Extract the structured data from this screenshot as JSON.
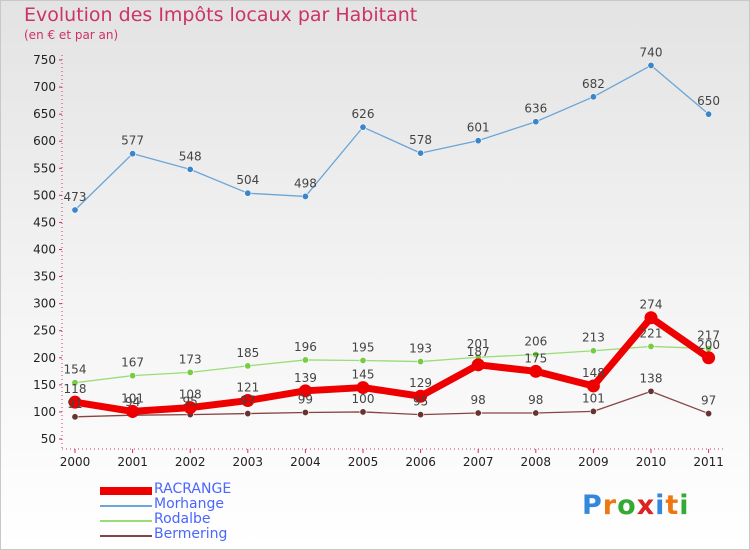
{
  "chart_data": {
    "type": "line",
    "title": "Evolution des Impôts locaux par Habitant",
    "subtitle": "(en € et par an)",
    "categories": [
      "2000",
      "2001",
      "2002",
      "2003",
      "2004",
      "2005",
      "2006",
      "2007",
      "2008",
      "2009",
      "2010",
      "2011"
    ],
    "ylim": [
      50,
      750
    ],
    "yticks": [
      50,
      100,
      150,
      200,
      250,
      300,
      350,
      400,
      450,
      500,
      550,
      600,
      650,
      700,
      750
    ],
    "grid": false,
    "legend_position": "bottom-left",
    "series": [
      {
        "name": "Morhange",
        "color": "#6aa6d8",
        "marker_color": "#3a86c8",
        "values": [
          473,
          577,
          548,
          504,
          498,
          626,
          578,
          601,
          636,
          682,
          740,
          650
        ]
      },
      {
        "name": "Rodalbe",
        "color": "#99dd77",
        "marker_color": "#77cc44",
        "values": [
          154,
          167,
          173,
          185,
          196,
          195,
          193,
          201,
          206,
          213,
          221,
          217
        ]
      },
      {
        "name": "Bermering",
        "color": "#884444",
        "marker_color": "#663333",
        "values": [
          91,
          94,
          95,
          97,
          99,
          100,
          95,
          98,
          98,
          101,
          138,
          97
        ]
      },
      {
        "name": "RACRANGE",
        "color": "#ee0000",
        "marker_color": "#ee0000",
        "values": [
          118,
          101,
          108,
          121,
          139,
          145,
          129,
          187,
          175,
          148,
          274,
          200
        ]
      }
    ]
  },
  "legend": {
    "items": [
      {
        "name": "RACRANGE",
        "color": "#ee0000"
      },
      {
        "name": "Morhange",
        "color": "#6aa6d8"
      },
      {
        "name": "Rodalbe",
        "color": "#99dd77"
      },
      {
        "name": "Bermering",
        "color": "#884444"
      }
    ]
  },
  "logo": {
    "text": "Proxiti",
    "letters": [
      "P",
      "r",
      "o",
      "x",
      "i",
      "t",
      "i"
    ],
    "colors": [
      "#3388dd",
      "#ee7711",
      "#33aa33",
      "#dd2222",
      "#3388dd",
      "#ee7711",
      "#33aa33"
    ]
  }
}
